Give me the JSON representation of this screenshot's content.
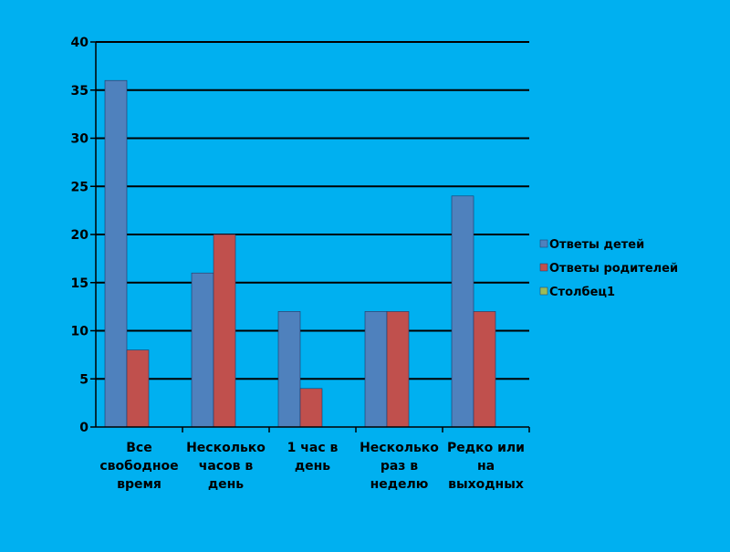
{
  "background_color": "#00b0f0",
  "chart_data": {
    "type": "bar",
    "categories": [
      [
        "Все",
        "свободное",
        "время"
      ],
      [
        "Несколько",
        "часов в",
        "день"
      ],
      [
        "1 час в",
        "день"
      ],
      [
        "Несколько",
        "раз в",
        "неделю"
      ],
      [
        "Редко или",
        "на",
        "выходных"
      ]
    ],
    "series": [
      {
        "name": "Ответы детей",
        "color": "#4f81bd",
        "values": [
          36,
          16,
          12,
          12,
          24
        ]
      },
      {
        "name": "Ответы родителей",
        "color": "#c0504d",
        "values": [
          8,
          20,
          4,
          12,
          12
        ]
      },
      {
        "name": "Столбец1",
        "color": "#9bbb59",
        "values": [
          0,
          0,
          0,
          0,
          0
        ]
      }
    ],
    "ylim": [
      0,
      40
    ],
    "yticks": [
      0,
      5,
      10,
      15,
      20,
      25,
      30,
      35,
      40
    ],
    "grid": true,
    "legend_position": "right",
    "title": "",
    "xlabel": "",
    "ylabel": ""
  }
}
